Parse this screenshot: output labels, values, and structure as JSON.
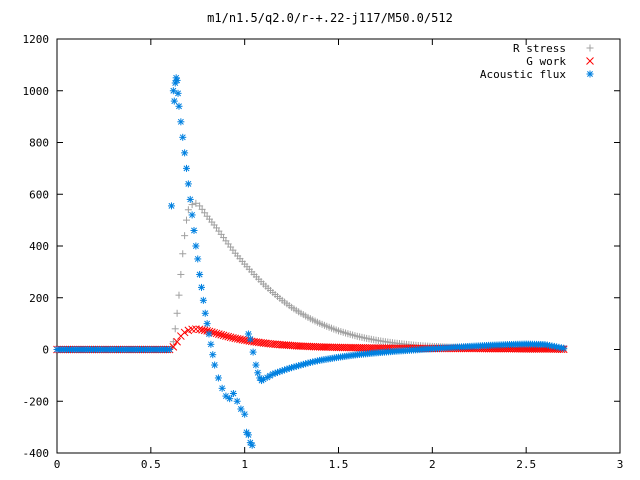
{
  "chart_data": {
    "type": "scatter",
    "title": "m1/n1.5/q2.0/r-+.22-j117/M50.0/512",
    "xlabel": "",
    "ylabel": "",
    "xlim": [
      0,
      3
    ],
    "ylim": [
      -400,
      1200
    ],
    "x_ticks": [
      0,
      0.5,
      1,
      1.5,
      2,
      2.5,
      3
    ],
    "x_tick_labels": [
      "0",
      "0.5",
      "1",
      "1.5",
      "2",
      "2.5",
      "3"
    ],
    "y_ticks": [
      -400,
      -200,
      0,
      200,
      400,
      600,
      800,
      1000,
      1200
    ],
    "y_tick_labels": [
      "-400",
      "-200",
      "0",
      "200",
      "400",
      "600",
      "800",
      "1000",
      "1200"
    ],
    "grid": false,
    "legend_position": "top-right",
    "series": [
      {
        "name": "R stress",
        "marker": "plus",
        "color": "#a0a0a0",
        "points": [
          [
            0.0,
            0
          ],
          [
            0.6,
            0
          ],
          [
            0.61,
            5
          ],
          [
            0.62,
            30
          ],
          [
            0.63,
            80
          ],
          [
            0.64,
            140
          ],
          [
            0.65,
            210
          ],
          [
            0.66,
            290
          ],
          [
            0.67,
            370
          ],
          [
            0.68,
            440
          ],
          [
            0.69,
            500
          ],
          [
            0.7,
            540
          ],
          [
            0.72,
            560
          ],
          [
            0.74,
            565
          ],
          [
            0.76,
            555
          ],
          [
            0.8,
            515
          ],
          [
            0.85,
            470
          ],
          [
            0.9,
            420
          ],
          [
            0.95,
            372
          ],
          [
            1.0,
            330
          ],
          [
            1.05,
            290
          ],
          [
            1.1,
            253
          ],
          [
            1.15,
            220
          ],
          [
            1.2,
            190
          ],
          [
            1.25,
            163
          ],
          [
            1.3,
            140
          ],
          [
            1.35,
            119
          ],
          [
            1.4,
            101
          ],
          [
            1.45,
            86
          ],
          [
            1.5,
            72
          ],
          [
            1.55,
            61
          ],
          [
            1.6,
            51
          ],
          [
            1.65,
            43
          ],
          [
            1.7,
            36
          ],
          [
            1.75,
            30
          ],
          [
            1.8,
            25
          ],
          [
            1.85,
            21
          ],
          [
            1.9,
            17
          ],
          [
            1.95,
            14
          ],
          [
            2.0,
            12
          ],
          [
            2.1,
            9
          ],
          [
            2.2,
            7
          ],
          [
            2.3,
            5
          ],
          [
            2.4,
            4
          ],
          [
            2.5,
            3
          ],
          [
            2.6,
            3
          ],
          [
            2.7,
            2
          ]
        ]
      },
      {
        "name": "G work",
        "marker": "cross",
        "color": "#ff0000",
        "points": [
          [
            0.0,
            0
          ],
          [
            0.6,
            0
          ],
          [
            0.62,
            10
          ],
          [
            0.64,
            30
          ],
          [
            0.66,
            52
          ],
          [
            0.68,
            66
          ],
          [
            0.7,
            74
          ],
          [
            0.72,
            78
          ],
          [
            0.74,
            79
          ],
          [
            0.76,
            78
          ],
          [
            0.8,
            72
          ],
          [
            0.85,
            62
          ],
          [
            0.9,
            52
          ],
          [
            0.95,
            43
          ],
          [
            1.0,
            36
          ],
          [
            1.05,
            30
          ],
          [
            1.1,
            25
          ],
          [
            1.15,
            21
          ],
          [
            1.2,
            18
          ],
          [
            1.3,
            13
          ],
          [
            1.4,
            10
          ],
          [
            1.5,
            8
          ],
          [
            1.6,
            7
          ],
          [
            1.7,
            6
          ],
          [
            1.8,
            5
          ],
          [
            1.9,
            5
          ],
          [
            2.0,
            4
          ],
          [
            2.1,
            4
          ],
          [
            2.2,
            4
          ],
          [
            2.3,
            3
          ],
          [
            2.4,
            3
          ],
          [
            2.5,
            2
          ],
          [
            2.6,
            2
          ],
          [
            2.7,
            1
          ]
        ]
      },
      {
        "name": "Acoustic flux",
        "marker": "star",
        "color": "#0080e0",
        "points": [
          [
            0.0,
            0
          ],
          [
            0.6,
            0
          ],
          [
            0.61,
            555
          ],
          [
            0.62,
            1000
          ],
          [
            0.625,
            960
          ],
          [
            0.63,
            1030
          ],
          [
            0.635,
            1050
          ],
          [
            0.64,
            1040
          ],
          [
            0.645,
            990
          ],
          [
            0.65,
            940
          ],
          [
            0.66,
            880
          ],
          [
            0.67,
            820
          ],
          [
            0.68,
            760
          ],
          [
            0.69,
            700
          ],
          [
            0.7,
            640
          ],
          [
            0.71,
            580
          ],
          [
            0.72,
            520
          ],
          [
            0.73,
            460
          ],
          [
            0.74,
            400
          ],
          [
            0.75,
            350
          ],
          [
            0.76,
            290
          ],
          [
            0.77,
            240
          ],
          [
            0.78,
            190
          ],
          [
            0.79,
            140
          ],
          [
            0.8,
            100
          ],
          [
            0.81,
            60
          ],
          [
            0.82,
            20
          ],
          [
            0.83,
            -20
          ],
          [
            0.84,
            -60
          ],
          [
            0.86,
            -110
          ],
          [
            0.88,
            -150
          ],
          [
            0.9,
            -180
          ],
          [
            0.92,
            -190
          ],
          [
            0.94,
            -170
          ],
          [
            0.96,
            -200
          ],
          [
            0.98,
            -230
          ],
          [
            1.0,
            -250
          ],
          [
            1.01,
            -320
          ],
          [
            1.02,
            -330
          ],
          [
            1.03,
            -360
          ],
          [
            1.04,
            -370
          ],
          [
            1.02,
            60
          ],
          [
            1.03,
            40
          ],
          [
            1.06,
            -60
          ],
          [
            1.07,
            -90
          ],
          [
            1.08,
            -110
          ],
          [
            1.09,
            -120
          ],
          [
            1.1,
            -115
          ],
          [
            1.12,
            -108
          ],
          [
            1.15,
            -95
          ],
          [
            1.2,
            -82
          ],
          [
            1.25,
            -70
          ],
          [
            1.3,
            -60
          ],
          [
            1.35,
            -50
          ],
          [
            1.4,
            -42
          ],
          [
            1.5,
            -30
          ],
          [
            1.6,
            -20
          ],
          [
            1.7,
            -13
          ],
          [
            1.8,
            -7
          ],
          [
            1.9,
            -2
          ],
          [
            2.0,
            3
          ],
          [
            2.1,
            8
          ],
          [
            2.2,
            12
          ],
          [
            2.3,
            16
          ],
          [
            2.4,
            19
          ],
          [
            2.5,
            21
          ],
          [
            2.6,
            19
          ],
          [
            2.65,
            12
          ],
          [
            2.7,
            5
          ]
        ]
      }
    ]
  }
}
